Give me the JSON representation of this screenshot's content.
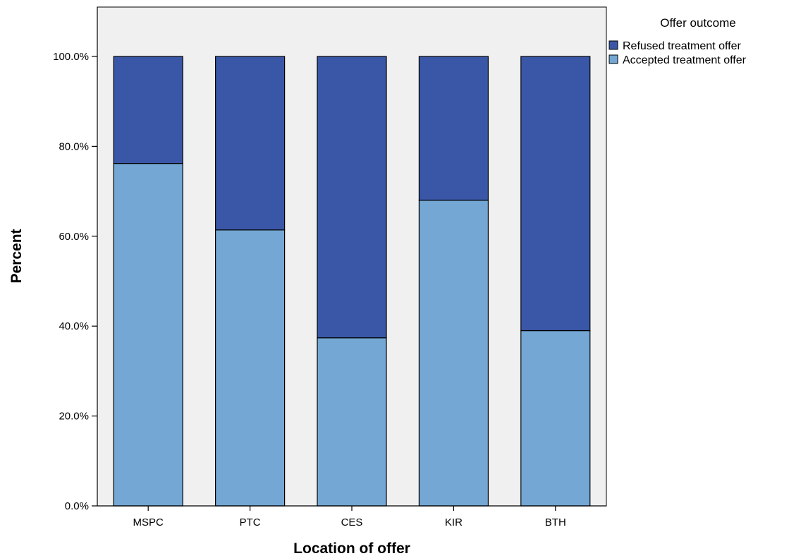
{
  "chart_data": {
    "type": "bar",
    "stacked": true,
    "percent_stacked": true,
    "categories": [
      "MSPC",
      "PTC",
      "CES",
      "KIR",
      "BTH"
    ],
    "series": [
      {
        "name": "Accepted treatment offer",
        "values": [
          76.2,
          61.4,
          37.4,
          68.0,
          39.0
        ],
        "color": "#74a7d3"
      },
      {
        "name": "Refused treatment offer",
        "values": [
          23.8,
          38.6,
          62.6,
          32.0,
          61.0
        ],
        "color": "#3a57a7"
      }
    ],
    "xlabel": "Location of offer",
    "ylabel": "Percent",
    "ylim": [
      0,
      110
    ],
    "yticks": [
      0,
      20,
      40,
      60,
      80,
      100
    ],
    "ytick_labels": [
      "0.0%",
      "20.0%",
      "40.0%",
      "60.0%",
      "80.0%",
      "100.0%"
    ],
    "grid": false,
    "plot_background": "#f0f0f0",
    "legend": {
      "title": "Offer outcome",
      "placement": "top-right outside",
      "entries": [
        "Refused treatment offer",
        "Accepted treatment offer"
      ]
    }
  }
}
